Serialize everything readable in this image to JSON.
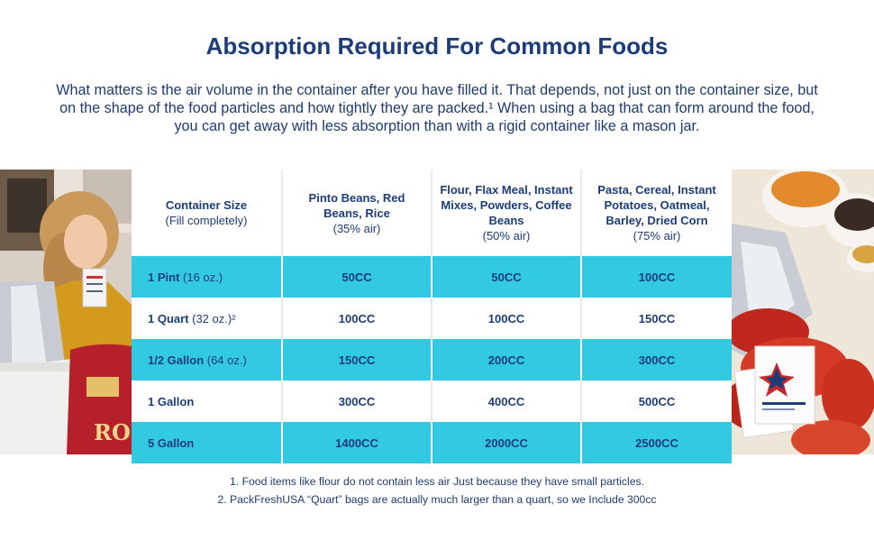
{
  "title": "Absorption Required For Common Foods",
  "intro": "What matters is the air volume in the container after you have filled it. That depends, not just on the container size, but on the shape of the food particles and how tightly they are packed.¹ When using a bag that can form around the food, you can get away with less absorption than with a rigid container like a mason jar.",
  "table": {
    "headers": [
      {
        "bold": "Container Size",
        "note": "(Fill completely)"
      },
      {
        "bold": "Pinto Beans, Red Beans, Rice",
        "note": "(35% air)"
      },
      {
        "bold": "Flour, Flax Meal, Instant Mixes, Powders, Coffee Beans",
        "note": "(50% air)"
      },
      {
        "bold": "Pasta, Cereal, Instant Potatoes, Oatmeal, Barley, Dried Corn",
        "note": "(75% air)"
      }
    ],
    "rows": [
      {
        "size": "1 Pint",
        "unit": " (16 oz.)",
        "values": [
          "50CC",
          "50CC",
          "100CC"
        ]
      },
      {
        "size": "1 Quart",
        "unit": " (32 oz.)²",
        "values": [
          "100CC",
          "100CC",
          "150CC"
        ]
      },
      {
        "size": "1/2 Gallon",
        "unit": " (64 oz.)",
        "values": [
          "150CC",
          "200CC",
          "300CC"
        ]
      },
      {
        "size": "1 Gallon",
        "unit": "",
        "values": [
          "300CC",
          "400CC",
          "500CC"
        ]
      },
      {
        "size": "5 Gallon",
        "unit": "",
        "values": [
          "1400CC",
          "2000CC",
          "2500CC"
        ]
      }
    ]
  },
  "footnotes": [
    "1. Food items like flour do not contain less air Just because they have small particles.",
    "2. PackFreshUSA “Quart” bags are actually much larger than a quart, so we Include 300cc"
  ],
  "colors": {
    "teal": "#32c9e3",
    "navy": "#1d3c7a"
  },
  "images": {
    "left": "woman-with-storage-bucket-photo",
    "right": "dried-foods-and-packets-photo"
  }
}
